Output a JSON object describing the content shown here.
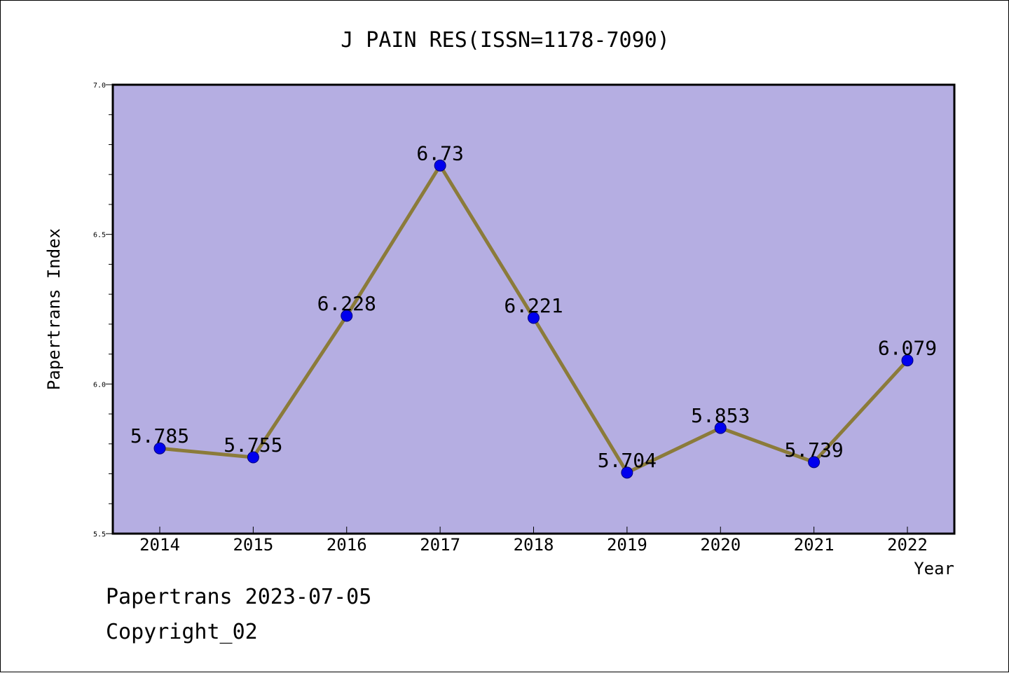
{
  "chart_data": {
    "type": "line",
    "title": "J PAIN RES(ISSN=1178-7090)",
    "xlabel": "Year",
    "ylabel": "Papertrans Index",
    "categories": [
      "2014",
      "2015",
      "2016",
      "2017",
      "2018",
      "2019",
      "2020",
      "2021",
      "2022"
    ],
    "series": [
      {
        "values": [
          5.785,
          5.755,
          6.228,
          6.73,
          6.221,
          5.704,
          5.853,
          5.739,
          6.079
        ],
        "labels": [
          "5.785",
          "5.755",
          "6.228",
          "6.73",
          "6.221",
          "5.704",
          "5.853",
          "5.739",
          "6.079"
        ]
      }
    ],
    "ylim": [
      5.5,
      7.0
    ],
    "yticks": [
      "5.5",
      "6.0",
      "6.5",
      "7.0"
    ],
    "grid": false,
    "legend": "none",
    "colors": {
      "plot_background": "#b5aee2",
      "line": "#8b7b3a",
      "marker": "#0000ee",
      "marker_edge": "#00007a"
    }
  },
  "footer": {
    "line1": "Papertrans 2023-07-05",
    "line2": "Copyright_02"
  }
}
